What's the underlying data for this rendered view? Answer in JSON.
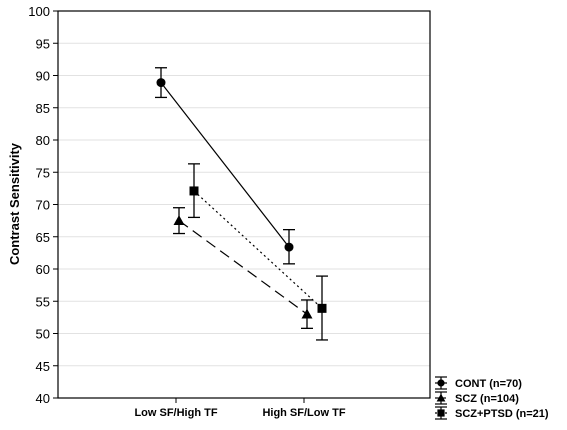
{
  "chart_data": {
    "type": "line",
    "title": "",
    "xlabel": "",
    "ylabel": "Contrast Sensitivity",
    "categories": [
      "Low SF/High TF",
      "High SF/Low TF"
    ],
    "ylim": [
      40,
      100
    ],
    "yticks": [
      40,
      45,
      50,
      55,
      60,
      65,
      70,
      75,
      80,
      85,
      90,
      95,
      100
    ],
    "grid": true,
    "legend_position": "bottom-right",
    "series": [
      {
        "name": "CONT (n=70)",
        "marker": "circle",
        "line_style": "solid",
        "values": [
          88.9,
          63.4
        ],
        "error": [
          [
            86.6,
            91.2
          ],
          [
            60.8,
            66.1
          ]
        ]
      },
      {
        "name": "SCZ (n=104)",
        "marker": "triangle",
        "line_style": "dashed",
        "values": [
          67.5,
          53.0
        ],
        "error": [
          [
            65.5,
            69.5
          ],
          [
            50.8,
            55.2
          ]
        ]
      },
      {
        "name": "SCZ+PTSD (n=21)",
        "marker": "square",
        "line_style": "dotted",
        "values": [
          72.1,
          53.9
        ],
        "error": [
          [
            68.0,
            76.3
          ],
          [
            49.0,
            58.9
          ]
        ]
      }
    ]
  }
}
